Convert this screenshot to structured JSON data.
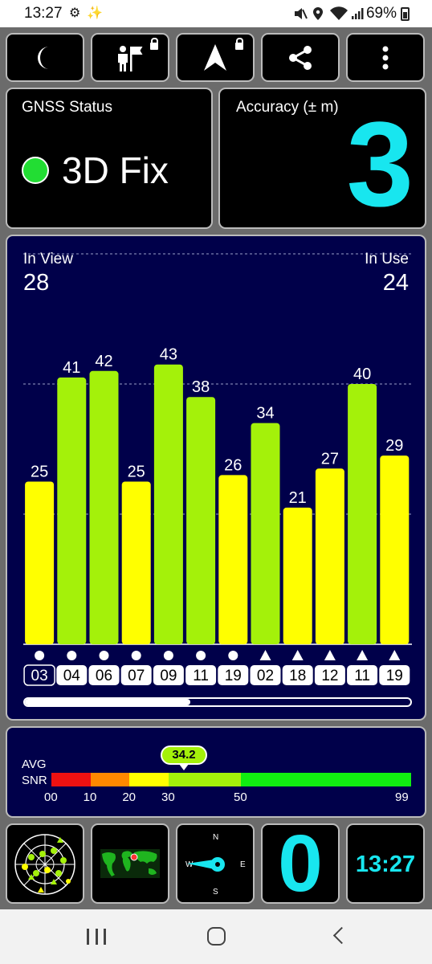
{
  "status_bar": {
    "time": "13:27",
    "battery": "69%",
    "icons": [
      "gear-icon",
      "wand-icon",
      "mute-icon",
      "location-icon",
      "wifi-icon",
      "signal-icon",
      "battery-icon"
    ]
  },
  "toolbar": {
    "buttons": [
      {
        "icon": "moon-icon",
        "locked": false
      },
      {
        "icon": "person-flag-icon",
        "locked": true
      },
      {
        "icon": "navigation-arrow-icon",
        "locked": true
      },
      {
        "icon": "share-icon",
        "locked": false
      },
      {
        "icon": "more-vert-icon",
        "locked": false
      }
    ]
  },
  "gnss_status": {
    "title": "GNSS Status",
    "value": "3D Fix",
    "color": "#22dd33"
  },
  "accuracy": {
    "title": "Accuracy (± m)",
    "value": "3"
  },
  "satellites": {
    "in_view_label": "In View",
    "in_view": "28",
    "in_use_label": "In Use",
    "in_use": "24",
    "y_max": 60,
    "gridlines": [
      20,
      40,
      60
    ],
    "bars": [
      {
        "snr": 25,
        "id": "03",
        "symbol": "circle",
        "selected": true
      },
      {
        "snr": 41,
        "id": "04",
        "symbol": "circle",
        "selected": false
      },
      {
        "snr": 42,
        "id": "06",
        "symbol": "circle",
        "selected": false
      },
      {
        "snr": 25,
        "id": "07",
        "symbol": "circle",
        "selected": false
      },
      {
        "snr": 43,
        "id": "09",
        "symbol": "circle",
        "selected": false
      },
      {
        "snr": 38,
        "id": "11",
        "symbol": "circle",
        "selected": false
      },
      {
        "snr": 26,
        "id": "19",
        "symbol": "circle",
        "selected": false
      },
      {
        "snr": 34,
        "id": "02",
        "symbol": "triangle",
        "selected": false
      },
      {
        "snr": 21,
        "id": "18",
        "symbol": "triangle",
        "selected": false
      },
      {
        "snr": 27,
        "id": "12",
        "symbol": "triangle",
        "selected": false
      },
      {
        "snr": 40,
        "id": "11",
        "symbol": "triangle",
        "selected": false
      },
      {
        "snr": 29,
        "id": "19",
        "symbol": "triangle",
        "selected": false
      }
    ],
    "scroll_fraction": 0.43
  },
  "snr_scale": {
    "label_line1": "AVG",
    "label_line2": "SNR",
    "avg": "34.2",
    "avg_value": 34.2,
    "segments": [
      {
        "from": 0,
        "to": 10,
        "color": "#ee1111"
      },
      {
        "from": 10,
        "to": 20,
        "color": "#ff8800"
      },
      {
        "from": 20,
        "to": 30,
        "color": "#ffff00"
      },
      {
        "from": 30,
        "to": 50,
        "color": "#a4f10a"
      },
      {
        "from": 50,
        "to": 99,
        "color": "#11ee11"
      }
    ],
    "ticks": [
      "00",
      "10",
      "20",
      "30",
      "50",
      "99"
    ]
  },
  "bottom_bar": {
    "buttons": [
      "skyplot-icon",
      "world-map-icon",
      "compass-icon"
    ],
    "compass": {
      "n": "N",
      "e": "E",
      "s": "S",
      "w": "W"
    },
    "counter": "0",
    "clock": "13:27"
  },
  "colors": {
    "accent": "#18e6ef",
    "panel_bg": "#00004a",
    "bar_strong": "#a4f10a",
    "bar_weak": "#ffff00"
  }
}
